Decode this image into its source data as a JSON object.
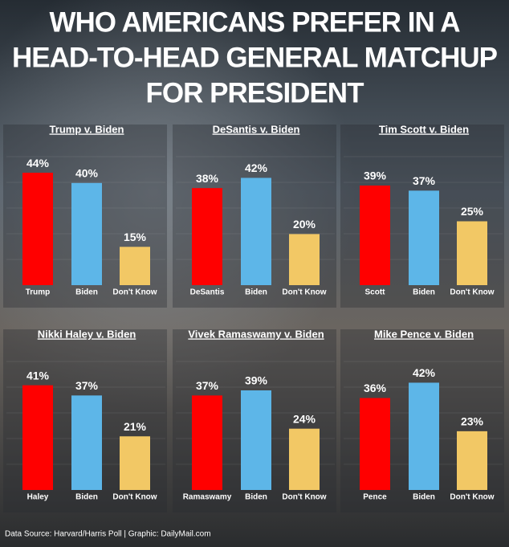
{
  "title_lines": [
    "WHO AMERICANS PREFER IN A",
    "HEAD-TO-HEAD GENERAL MATCHUP",
    "FOR PRESIDENT"
  ],
  "source": "Data Source: Harvard/Harris Poll |  Graphic: DailyMail.com",
  "chart_data": [
    {
      "type": "bar",
      "title": "Trump v. Biden",
      "categories": [
        "Trump",
        "Biden",
        "Don't Know"
      ],
      "values": [
        44,
        40,
        15
      ],
      "value_labels": [
        "44%",
        "40%",
        "15%"
      ],
      "colors": [
        "#ff0000",
        "#5db6e8",
        "#f2c865"
      ]
    },
    {
      "type": "bar",
      "title": "DeSantis v. Biden",
      "categories": [
        "DeSantis",
        "Biden",
        "Don't Know"
      ],
      "values": [
        38,
        42,
        20
      ],
      "value_labels": [
        "38%",
        "42%",
        "20%"
      ],
      "colors": [
        "#ff0000",
        "#5db6e8",
        "#f2c865"
      ]
    },
    {
      "type": "bar",
      "title": "Tim Scott v. Biden",
      "categories": [
        "Scott",
        "Biden",
        "Don't Know"
      ],
      "values": [
        39,
        37,
        25
      ],
      "value_labels": [
        "39%",
        "37%",
        "25%"
      ],
      "colors": [
        "#ff0000",
        "#5db6e8",
        "#f2c865"
      ]
    },
    {
      "type": "bar",
      "title": "Nikki Haley v. Biden",
      "categories": [
        "Haley",
        "Biden",
        "Don't Know"
      ],
      "values": [
        41,
        37,
        21
      ],
      "value_labels": [
        "41%",
        "37%",
        "21%"
      ],
      "colors": [
        "#ff0000",
        "#5db6e8",
        "#f2c865"
      ]
    },
    {
      "type": "bar",
      "title": "Vivek  Ramaswamy v. Biden",
      "categories": [
        "Ramaswamy",
        "Biden",
        "Don't Know"
      ],
      "values": [
        37,
        39,
        24
      ],
      "value_labels": [
        "37%",
        "39%",
        "24%"
      ],
      "colors": [
        "#ff0000",
        "#5db6e8",
        "#f2c865"
      ]
    },
    {
      "type": "bar",
      "title": "Mike Pence  v. Biden",
      "categories": [
        "Pence",
        "Biden",
        "Don't Know"
      ],
      "values": [
        36,
        42,
        23
      ],
      "value_labels": [
        "36%",
        "42%",
        "23%"
      ],
      "colors": [
        "#ff0000",
        "#5db6e8",
        "#f2c865"
      ]
    }
  ]
}
